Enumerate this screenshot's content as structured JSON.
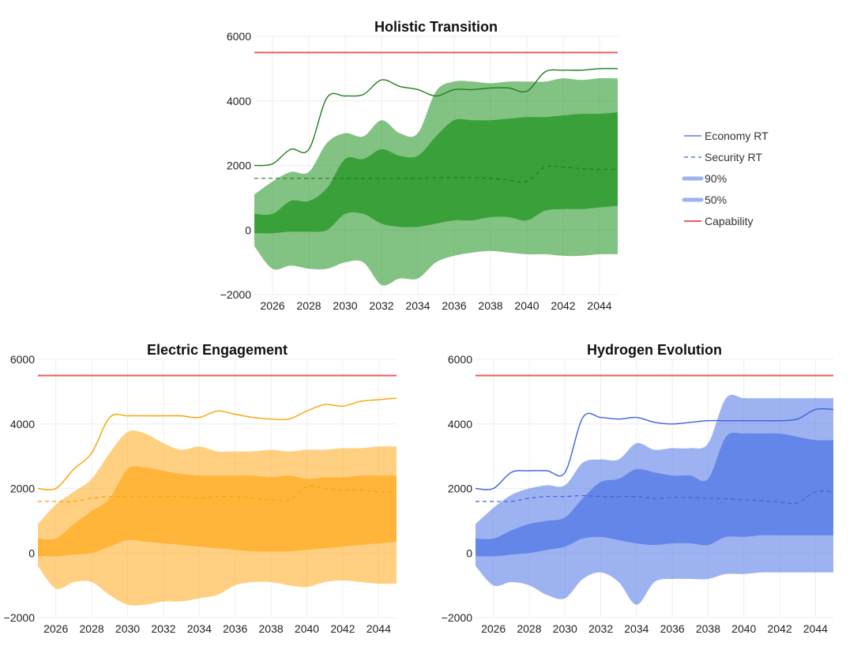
{
  "chart_data": [
    {
      "type": "area",
      "title": "Holistic Transition",
      "color": "#2e9a2e",
      "line_color": "#1f7f1f",
      "ylim": [
        -2000,
        6000
      ],
      "yticks": [
        -2000,
        0,
        2000,
        4000,
        6000
      ],
      "xlim": [
        2025,
        2045
      ],
      "xticks": [
        2026,
        2028,
        2030,
        2032,
        2034,
        2036,
        2038,
        2040,
        2042,
        2044
      ],
      "grid": true,
      "capability": 5500,
      "x": [
        2025,
        2026,
        2027,
        2028,
        2029,
        2030,
        2031,
        2032,
        2033,
        2034,
        2035,
        2036,
        2037,
        2038,
        2039,
        2040,
        2041,
        2042,
        2043,
        2044,
        2045
      ],
      "economy_rt": [
        2000,
        2050,
        2500,
        2500,
        4100,
        4150,
        4200,
        4650,
        4450,
        4350,
        4150,
        4350,
        4350,
        4400,
        4400,
        4300,
        4900,
        4950,
        4950,
        5000,
        5000
      ],
      "security_rt": [
        1600,
        1600,
        1600,
        1600,
        1600,
        1600,
        1600,
        1600,
        1600,
        1600,
        1620,
        1620,
        1620,
        1600,
        1550,
        1500,
        1950,
        1950,
        1900,
        1880,
        1880
      ],
      "band90_upper": [
        1100,
        1500,
        1800,
        1800,
        2700,
        3000,
        2900,
        3400,
        3000,
        3000,
        4300,
        4600,
        4600,
        4550,
        4600,
        4600,
        4600,
        4700,
        4650,
        4700,
        4700
      ],
      "band90_lower": [
        -500,
        -1200,
        -1100,
        -1200,
        -1200,
        -1000,
        -1000,
        -1700,
        -1500,
        -1500,
        -1000,
        -800,
        -700,
        -650,
        -700,
        -750,
        -750,
        -800,
        -800,
        -750,
        -750
      ],
      "band50_upper": [
        500,
        500,
        900,
        900,
        1300,
        2200,
        2200,
        2500,
        2300,
        2300,
        2900,
        3400,
        3400,
        3400,
        3450,
        3500,
        3500,
        3550,
        3600,
        3600,
        3650
      ],
      "band50_lower": [
        -100,
        -100,
        -50,
        -50,
        0,
        500,
        500,
        200,
        100,
        100,
        200,
        300,
        300,
        400,
        400,
        300,
        600,
        650,
        650,
        700,
        750
      ]
    },
    {
      "type": "area",
      "title": "Electric Engagement",
      "color": "#ffb02e",
      "line_color": "#f5a500",
      "ylim": [
        -2000,
        6000
      ],
      "yticks": [
        -2000,
        0,
        2000,
        4000,
        6000
      ],
      "xlim": [
        2025,
        2045
      ],
      "xticks": [
        2026,
        2028,
        2030,
        2032,
        2034,
        2036,
        2038,
        2040,
        2042,
        2044
      ],
      "grid": true,
      "capability": 5500,
      "x": [
        2025,
        2026,
        2027,
        2028,
        2029,
        2030,
        2031,
        2032,
        2033,
        2034,
        2035,
        2036,
        2037,
        2038,
        2039,
        2040,
        2041,
        2042,
        2043,
        2044,
        2045
      ],
      "economy_rt": [
        2000,
        2000,
        2600,
        3100,
        4200,
        4250,
        4250,
        4250,
        4250,
        4200,
        4400,
        4300,
        4200,
        4150,
        4150,
        4400,
        4600,
        4550,
        4700,
        4750,
        4800
      ],
      "security_rt": [
        1600,
        1600,
        1600,
        1700,
        1750,
        1750,
        1750,
        1750,
        1750,
        1700,
        1750,
        1750,
        1700,
        1650,
        1650,
        2050,
        2000,
        1950,
        1950,
        1900,
        1900
      ],
      "band90_upper": [
        900,
        1500,
        1900,
        2300,
        3100,
        3750,
        3700,
        3400,
        3200,
        3300,
        3150,
        3150,
        3150,
        3200,
        3150,
        3200,
        3200,
        3250,
        3250,
        3300,
        3300
      ],
      "band90_lower": [
        -400,
        -1100,
        -900,
        -900,
        -1300,
        -1600,
        -1600,
        -1500,
        -1500,
        -1400,
        -1300,
        -1000,
        -900,
        -900,
        -1000,
        -1050,
        -900,
        -850,
        -900,
        -950,
        -950
      ],
      "band50_upper": [
        450,
        450,
        900,
        1300,
        1700,
        2600,
        2650,
        2550,
        2450,
        2400,
        2400,
        2400,
        2400,
        2350,
        2400,
        2300,
        2350,
        2350,
        2400,
        2400,
        2400
      ],
      "band50_lower": [
        -100,
        -100,
        -50,
        0,
        200,
        400,
        350,
        300,
        250,
        200,
        150,
        100,
        50,
        50,
        50,
        100,
        150,
        200,
        250,
        300,
        350
      ]
    },
    {
      "type": "area",
      "title": "Hydrogen Evolution",
      "color": "#5b7ee6",
      "line_color": "#3d62e0",
      "ylim": [
        -2000,
        6000
      ],
      "yticks": [
        -2000,
        0,
        2000,
        4000,
        6000
      ],
      "xlim": [
        2025,
        2045
      ],
      "xticks": [
        2026,
        2028,
        2030,
        2032,
        2034,
        2036,
        2038,
        2040,
        2042,
        2044
      ],
      "grid": true,
      "capability": 5500,
      "x": [
        2025,
        2026,
        2027,
        2028,
        2029,
        2030,
        2031,
        2032,
        2033,
        2034,
        2035,
        2036,
        2037,
        2038,
        2039,
        2040,
        2041,
        2042,
        2043,
        2044,
        2045
      ],
      "economy_rt": [
        2000,
        2000,
        2500,
        2550,
        2550,
        2500,
        4200,
        4200,
        4150,
        4200,
        4050,
        4000,
        4050,
        4100,
        4100,
        4100,
        4100,
        4100,
        4150,
        4450,
        4450
      ],
      "security_rt": [
        1600,
        1600,
        1600,
        1700,
        1750,
        1750,
        1780,
        1750,
        1750,
        1750,
        1700,
        1720,
        1720,
        1700,
        1680,
        1650,
        1620,
        1580,
        1550,
        1900,
        1900
      ],
      "band90_upper": [
        900,
        1400,
        1800,
        2000,
        2100,
        2100,
        2800,
        2900,
        2900,
        3400,
        3200,
        3250,
        3250,
        3400,
        4800,
        4800,
        4800,
        4800,
        4800,
        4800,
        4800
      ],
      "band90_lower": [
        -400,
        -1000,
        -900,
        -1000,
        -1300,
        -1400,
        -800,
        -600,
        -900,
        -1600,
        -900,
        -800,
        -800,
        -800,
        -650,
        -650,
        -600,
        -600,
        -600,
        -600,
        -600
      ],
      "band50_upper": [
        450,
        450,
        700,
        900,
        1000,
        1100,
        1700,
        2200,
        2300,
        2600,
        2500,
        2400,
        2400,
        2300,
        3600,
        3700,
        3700,
        3700,
        3600,
        3500,
        3500
      ],
      "band50_lower": [
        -100,
        -100,
        -50,
        0,
        100,
        200,
        450,
        500,
        400,
        300,
        250,
        300,
        300,
        250,
        500,
        500,
        550,
        550,
        550,
        550,
        550
      ]
    }
  ],
  "legend": {
    "placement": "right",
    "swatch_color": "#5b7ee6",
    "capability_color": "#f05a5a",
    "items": [
      {
        "label": "Economy RT",
        "kind": "line"
      },
      {
        "label": "Security RT",
        "kind": "dashed"
      },
      {
        "label": "90%",
        "kind": "band"
      },
      {
        "label": "50%",
        "kind": "band"
      },
      {
        "label": "Capability",
        "kind": "capability"
      }
    ]
  }
}
